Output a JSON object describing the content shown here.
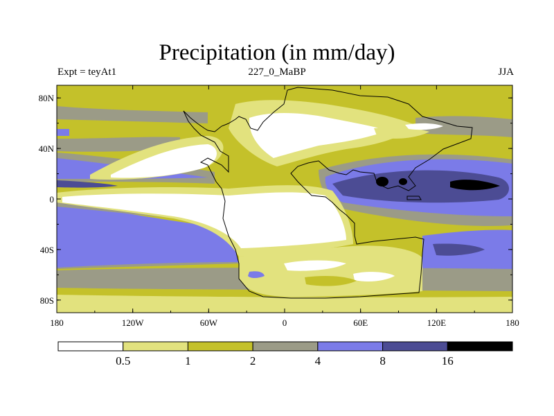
{
  "title": "Precipitation (in mm/day)",
  "subtitle_left": "Expt = teyAt1",
  "subtitle_center": "227_0_MaBP",
  "subtitle_right": "JJA",
  "y_ticks": [
    {
      "value": 80,
      "label": "80N"
    },
    {
      "value": 40,
      "label": "40N"
    },
    {
      "value": 0,
      "label": "0"
    },
    {
      "value": -40,
      "label": "40S"
    },
    {
      "value": -80,
      "label": "80S"
    }
  ],
  "x_ticks": [
    {
      "value": -180,
      "label": "180"
    },
    {
      "value": -120,
      "label": "120W"
    },
    {
      "value": -60,
      "label": "60W"
    },
    {
      "value": 0,
      "label": "0"
    },
    {
      "value": 60,
      "label": "60E"
    },
    {
      "value": 120,
      "label": "120E"
    },
    {
      "value": 180,
      "label": "180"
    }
  ],
  "colorbar": {
    "levels": [
      "0.5",
      "1",
      "2",
      "4",
      "8",
      "16"
    ],
    "colors": [
      "#ffffff",
      "#e2e27e",
      "#c4c12a",
      "#9b9b87",
      "#7b7be8",
      "#4c4c94",
      "#000000"
    ]
  },
  "colors": {
    "white": "#ffffff",
    "light_yellow": "#e2e27e",
    "olive": "#c4c12a",
    "gray": "#9b9b87",
    "blue": "#7b7be8",
    "dark_blue": "#4c4c94",
    "black": "#000000"
  }
}
